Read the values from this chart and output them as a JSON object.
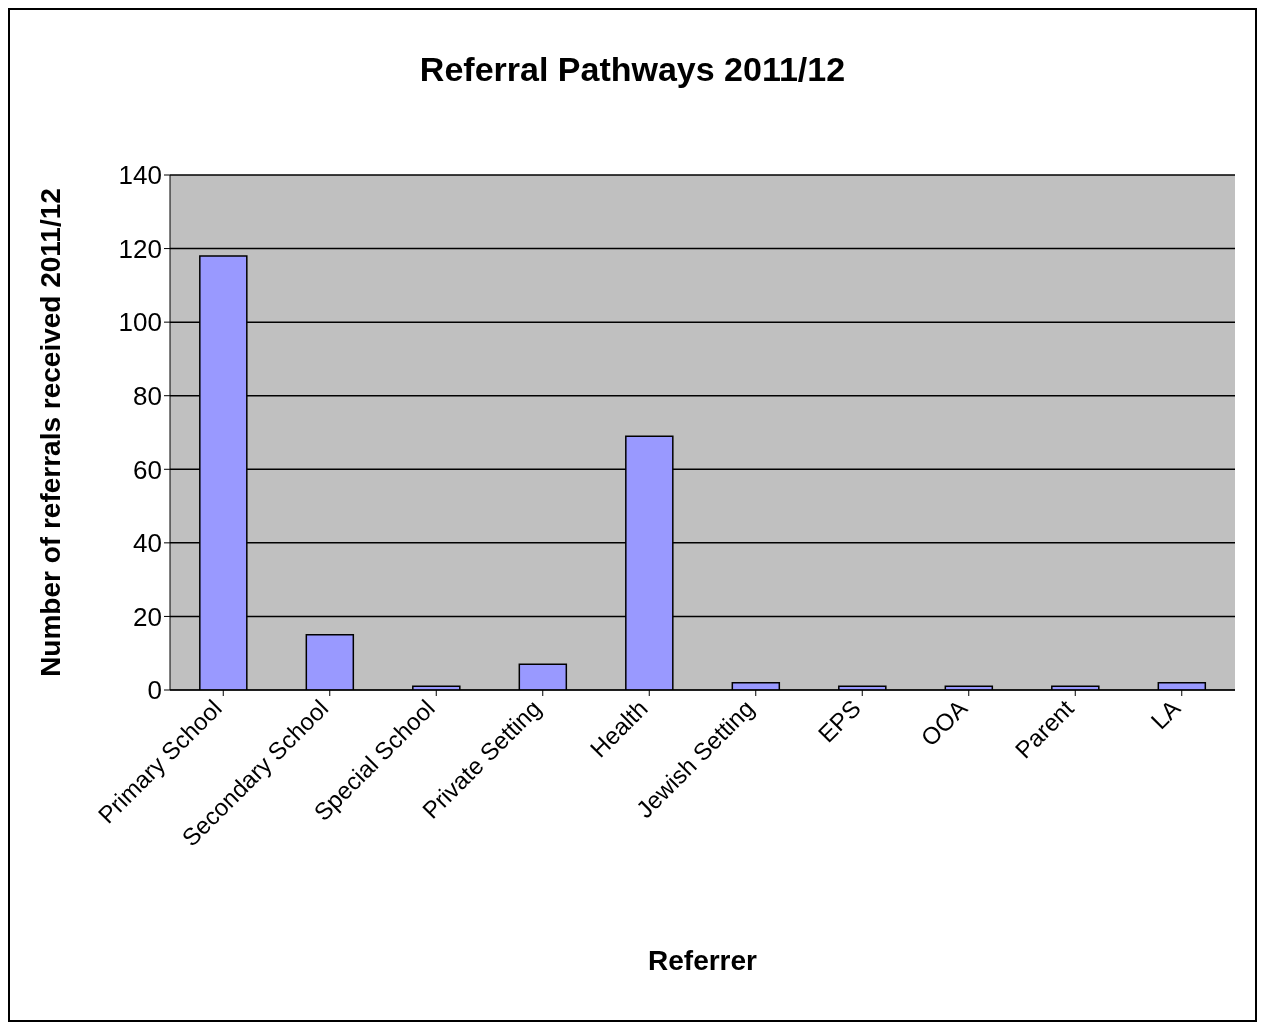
{
  "chart_data": {
    "type": "bar",
    "title": "Referral Pathways 2011/12",
    "xlabel": "Referrer",
    "ylabel": "Number of referrals received 2011/12",
    "categories": [
      "Primary School",
      "Secondary School",
      "Special School",
      "Private Setting",
      "Health",
      "Jewish Setting",
      "EPS",
      "OOA",
      "Parent",
      "LA"
    ],
    "values": [
      118,
      15,
      1,
      7,
      69,
      2,
      1,
      1,
      1,
      2
    ],
    "color": "#9999ff",
    "ylim": [
      0,
      140
    ],
    "yticks": [
      0,
      20,
      40,
      60,
      80,
      100,
      120,
      140
    ],
    "grid": "y"
  }
}
